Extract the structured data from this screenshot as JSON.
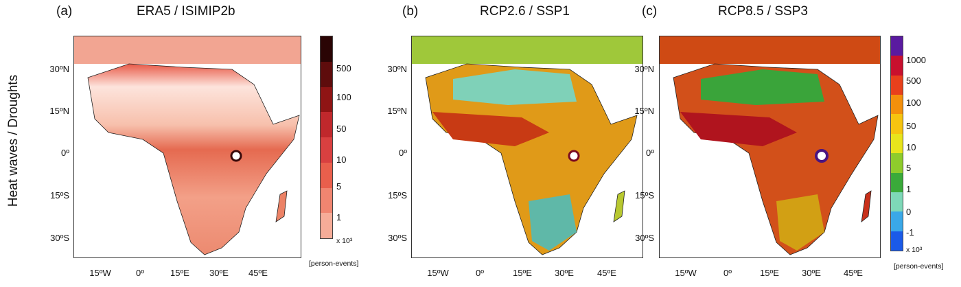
{
  "figure": {
    "row_label": "Heat waves / Droughts",
    "panels": [
      {
        "letter": "(a)",
        "title": "ERA5 / ISIMIP2b"
      },
      {
        "letter": "(b)",
        "title": "RCP2.6 / SSP1"
      },
      {
        "letter": "(c)",
        "title": "RCP8.5 / SSP3"
      }
    ],
    "lat_ticks": [
      "30ºN",
      "15ºN",
      "0º",
      "15ºS",
      "30ºS"
    ],
    "lon_ticks": [
      "15ºW",
      "0º",
      "15ºE",
      "30ºE",
      "45ºE"
    ],
    "colorbar_a": {
      "labels": [
        "500",
        "100",
        "50",
        "10",
        "5",
        "1"
      ],
      "multiplier": "x 10³",
      "unit": "[person-events]",
      "colors": [
        "#2a0404",
        "#5e0c0c",
        "#8f1414",
        "#c0282c",
        "#d94040",
        "#e95f4c",
        "#f08570",
        "#f6ac98"
      ]
    },
    "colorbar_bc": {
      "labels": [
        "1000",
        "500",
        "100",
        "50",
        "10",
        "5",
        "1",
        "0",
        "-1"
      ],
      "multiplier": "x 10³",
      "unit": "[person-events]",
      "colors": [
        "#5a1aa0",
        "#c8102e",
        "#e8401c",
        "#f4900c",
        "#f6c410",
        "#e8e41c",
        "#8ecc2c",
        "#3aaa3a",
        "#7ed8b8",
        "#3aa8e8",
        "#1a5ae8"
      ]
    }
  }
}
